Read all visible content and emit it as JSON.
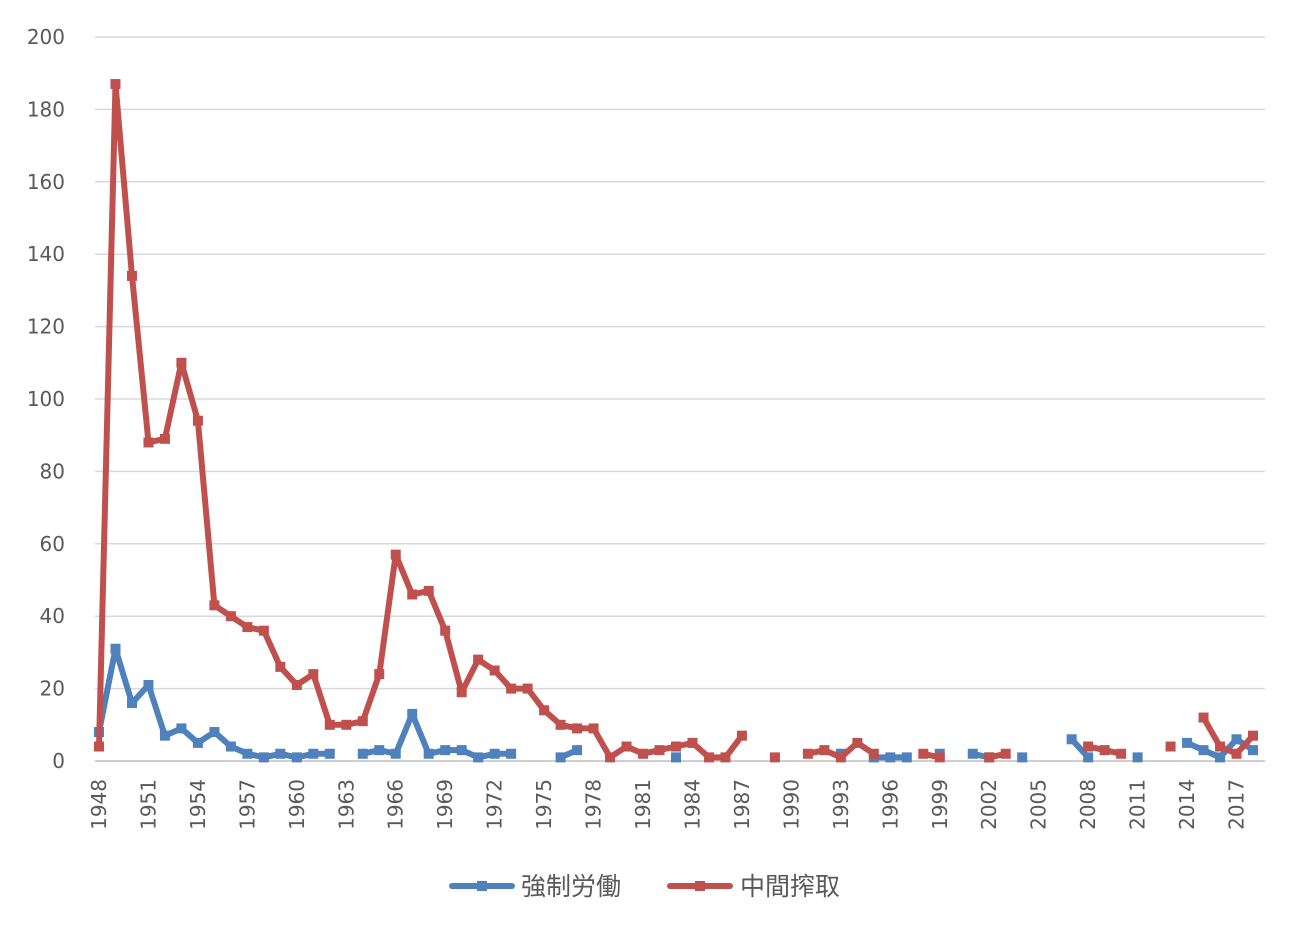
{
  "chart_data": {
    "type": "line",
    "title": "",
    "xlabel": "",
    "ylabel": "",
    "ylim": [
      0,
      200
    ],
    "y_ticks": [
      0,
      20,
      40,
      60,
      80,
      100,
      120,
      140,
      160,
      180,
      200
    ],
    "x_tick_labels": [
      "1948",
      "1951",
      "1954",
      "1957",
      "1960",
      "1963",
      "1966",
      "1969",
      "1972",
      "1975",
      "1978",
      "1981",
      "1984",
      "1987",
      "1990",
      "1993",
      "1996",
      "1999",
      "2002",
      "2005",
      "2008",
      "2011",
      "2014",
      "2017"
    ],
    "x": [
      1948,
      1949,
      1950,
      1951,
      1952,
      1953,
      1954,
      1955,
      1956,
      1957,
      1958,
      1959,
      1960,
      1961,
      1962,
      1963,
      1964,
      1965,
      1966,
      1967,
      1968,
      1969,
      1970,
      1971,
      1972,
      1973,
      1974,
      1975,
      1976,
      1977,
      1978,
      1979,
      1980,
      1981,
      1982,
      1983,
      1984,
      1985,
      1986,
      1987,
      1988,
      1989,
      1990,
      1991,
      1992,
      1993,
      1994,
      1995,
      1996,
      1997,
      1998,
      1999,
      2000,
      2001,
      2002,
      2003,
      2004,
      2005,
      2006,
      2007,
      2008,
      2009,
      2010,
      2011,
      2012,
      2013,
      2014,
      2015,
      2016,
      2017,
      2018
    ],
    "grid": true,
    "legend_position": "bottom",
    "series": [
      {
        "name": "強制労働",
        "color": "#4f81bd",
        "values": [
          8,
          31,
          16,
          21,
          7,
          9,
          5,
          8,
          4,
          2,
          1,
          2,
          1,
          2,
          2,
          null,
          2,
          3,
          2,
          13,
          2,
          3,
          3,
          1,
          2,
          2,
          null,
          null,
          1,
          3,
          null,
          null,
          null,
          null,
          null,
          1,
          null,
          null,
          null,
          null,
          null,
          null,
          null,
          null,
          null,
          2,
          null,
          1,
          1,
          1,
          null,
          2,
          null,
          2,
          1,
          null,
          1,
          null,
          null,
          6,
          1,
          null,
          null,
          1,
          null,
          null,
          5,
          3,
          1,
          6,
          3
        ]
      },
      {
        "name": "中間搾取",
        "color": "#c0504d",
        "values": [
          4,
          187,
          134,
          88,
          89,
          110,
          94,
          43,
          40,
          37,
          36,
          26,
          21,
          24,
          10,
          10,
          11,
          24,
          57,
          46,
          47,
          36,
          19,
          28,
          25,
          20,
          20,
          14,
          10,
          9,
          9,
          1,
          4,
          2,
          3,
          4,
          5,
          1,
          1,
          7,
          null,
          1,
          null,
          2,
          3,
          1,
          5,
          2,
          null,
          null,
          2,
          1,
          null,
          null,
          1,
          2,
          null,
          null,
          null,
          null,
          4,
          3,
          2,
          null,
          null,
          4,
          null,
          12,
          4,
          2,
          7
        ]
      }
    ]
  }
}
